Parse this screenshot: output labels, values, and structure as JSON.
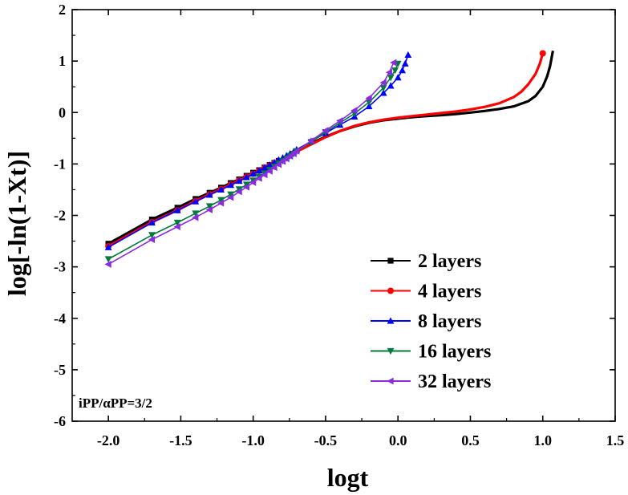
{
  "chart_data": {
    "type": "line",
    "title": "",
    "xlabel": "logt",
    "ylabel": "log[-ln(1-Xt)]",
    "xlim": [
      -2.25,
      1.5
    ],
    "ylim": [
      -6,
      2
    ],
    "xticks": [
      -2.0,
      -1.5,
      -1.0,
      -0.5,
      0.0,
      0.5,
      1.0,
      1.5
    ],
    "xtick_labels": [
      "-2.0",
      "-1.5",
      "-1.0",
      "-0.5",
      "0.0",
      "0.5",
      "1.0",
      "1.5"
    ],
    "yticks": [
      -6,
      -5,
      -4,
      -3,
      -2,
      -1,
      0,
      1,
      2
    ],
    "ytick_labels": [
      "-6",
      "-5",
      "-4",
      "-3",
      "-2",
      "-1",
      "0",
      "1",
      "2"
    ],
    "legend_position": "lower-right",
    "annotation": "iPP/αPP=3/2",
    "series": [
      {
        "name": "2 layers",
        "color": "#000000",
        "marker": "square",
        "x": [
          -2.0,
          -1.699,
          -1.523,
          -1.398,
          -1.301,
          -1.222,
          -1.155,
          -1.097,
          -1.046,
          -1.0,
          -0.959,
          -0.921,
          -0.886,
          -0.854,
          -0.824,
          -0.8,
          -0.7,
          -0.6,
          -0.5,
          -0.4,
          -0.3,
          -0.2,
          -0.1,
          0.0,
          0.1,
          0.2,
          0.3,
          0.4,
          0.5,
          0.6,
          0.7,
          0.8,
          0.9,
          0.95,
          1.0,
          1.03,
          1.05,
          1.07
        ],
        "y": [
          -2.55,
          -2.08,
          -1.85,
          -1.68,
          -1.56,
          -1.46,
          -1.37,
          -1.3,
          -1.23,
          -1.17,
          -1.12,
          -1.07,
          -1.02,
          -0.98,
          -0.94,
          -0.9,
          -0.75,
          -0.6,
          -0.47,
          -0.36,
          -0.27,
          -0.2,
          -0.15,
          -0.12,
          -0.09,
          -0.07,
          -0.05,
          -0.03,
          0.0,
          0.03,
          0.07,
          0.12,
          0.22,
          0.32,
          0.5,
          0.7,
          0.9,
          1.2
        ],
        "marker_every": [
          0,
          1,
          2,
          3,
          4,
          5,
          6,
          7,
          8,
          9,
          10,
          11,
          12,
          13,
          14
        ]
      },
      {
        "name": "4 layers",
        "color": "#ff0000",
        "marker": "circle",
        "x": [
          -2.0,
          -1.699,
          -1.523,
          -1.398,
          -1.301,
          -1.222,
          -1.155,
          -1.097,
          -1.046,
          -1.0,
          -0.959,
          -0.921,
          -0.886,
          -0.854,
          -0.824,
          -0.8,
          -0.7,
          -0.6,
          -0.5,
          -0.4,
          -0.3,
          -0.2,
          -0.1,
          0.0,
          0.1,
          0.2,
          0.3,
          0.4,
          0.5,
          0.6,
          0.7,
          0.8,
          0.85,
          0.9,
          0.95,
          0.98,
          1.0
        ],
        "y": [
          -2.6,
          -2.13,
          -1.9,
          -1.72,
          -1.59,
          -1.49,
          -1.4,
          -1.32,
          -1.25,
          -1.19,
          -1.13,
          -1.08,
          -1.03,
          -0.99,
          -0.95,
          -0.91,
          -0.76,
          -0.62,
          -0.48,
          -0.36,
          -0.26,
          -0.19,
          -0.14,
          -0.1,
          -0.07,
          -0.04,
          -0.01,
          0.02,
          0.06,
          0.11,
          0.18,
          0.3,
          0.4,
          0.55,
          0.75,
          0.95,
          1.15
        ],
        "marker_every": [
          0,
          1,
          2,
          3,
          4,
          5,
          6,
          7,
          8,
          9,
          10,
          11,
          12,
          13,
          14,
          36
        ]
      },
      {
        "name": "8 layers",
        "color": "#0000ff",
        "marker": "triangle-up",
        "x": [
          -2.0,
          -1.699,
          -1.523,
          -1.398,
          -1.301,
          -1.222,
          -1.155,
          -1.097,
          -1.046,
          -1.0,
          -0.959,
          -0.921,
          -0.886,
          -0.854,
          -0.824,
          -0.796,
          -0.77,
          -0.745,
          -0.72,
          -0.7,
          -0.6,
          -0.5,
          -0.4,
          -0.3,
          -0.2,
          -0.1,
          -0.05,
          0.0,
          0.03,
          0.05,
          0.07
        ],
        "y": [
          -2.62,
          -2.14,
          -1.9,
          -1.73,
          -1.6,
          -1.5,
          -1.41,
          -1.33,
          -1.26,
          -1.19,
          -1.13,
          -1.07,
          -1.02,
          -0.97,
          -0.92,
          -0.88,
          -0.84,
          -0.8,
          -0.76,
          -0.72,
          -0.56,
          -0.4,
          -0.24,
          -0.08,
          0.12,
          0.38,
          0.52,
          0.68,
          0.82,
          0.95,
          1.12
        ],
        "marker_every": [
          0,
          1,
          2,
          3,
          4,
          5,
          6,
          7,
          8,
          9,
          10,
          11,
          12,
          13,
          14,
          15,
          16,
          17,
          18,
          19,
          20,
          21,
          22,
          23,
          24,
          25,
          26,
          27,
          28,
          29,
          30
        ]
      },
      {
        "name": "16 layers",
        "color": "#007a3d",
        "marker": "triangle-down",
        "x": [
          -2.0,
          -1.699,
          -1.523,
          -1.398,
          -1.301,
          -1.222,
          -1.155,
          -1.097,
          -1.046,
          -1.0,
          -0.959,
          -0.921,
          -0.886,
          -0.854,
          -0.824,
          -0.796,
          -0.77,
          -0.745,
          -0.72,
          -0.7,
          -0.6,
          -0.5,
          -0.4,
          -0.3,
          -0.2,
          -0.1,
          -0.05,
          -0.02,
          0.0
        ],
        "y": [
          -2.85,
          -2.38,
          -2.14,
          -1.96,
          -1.82,
          -1.7,
          -1.59,
          -1.49,
          -1.4,
          -1.32,
          -1.25,
          -1.18,
          -1.11,
          -1.05,
          -0.99,
          -0.94,
          -0.89,
          -0.84,
          -0.8,
          -0.75,
          -0.57,
          -0.38,
          -0.2,
          -0.02,
          0.2,
          0.48,
          0.68,
          0.82,
          0.95
        ],
        "marker_every": [
          0,
          1,
          2,
          3,
          4,
          5,
          6,
          7,
          8,
          9,
          10,
          11,
          12,
          13,
          14,
          15,
          16,
          17,
          18,
          19,
          20,
          21,
          22,
          23,
          24,
          25,
          26,
          27,
          28
        ]
      },
      {
        "name": "32 layers",
        "color": "#8a2be2",
        "marker": "triangle-left",
        "x": [
          -2.0,
          -1.699,
          -1.523,
          -1.398,
          -1.301,
          -1.222,
          -1.155,
          -1.097,
          -1.046,
          -1.0,
          -0.959,
          -0.921,
          -0.886,
          -0.854,
          -0.824,
          -0.796,
          -0.77,
          -0.745,
          -0.72,
          -0.7,
          -0.6,
          -0.5,
          -0.4,
          -0.3,
          -0.2,
          -0.1,
          -0.06,
          -0.03
        ],
        "y": [
          -2.95,
          -2.47,
          -2.22,
          -2.04,
          -1.89,
          -1.76,
          -1.65,
          -1.54,
          -1.45,
          -1.36,
          -1.28,
          -1.21,
          -1.14,
          -1.07,
          -1.01,
          -0.95,
          -0.9,
          -0.85,
          -0.8,
          -0.75,
          -0.55,
          -0.35,
          -0.16,
          0.04,
          0.28,
          0.58,
          0.78,
          0.97
        ],
        "marker_every": [
          0,
          1,
          2,
          3,
          4,
          5,
          6,
          7,
          8,
          9,
          10,
          11,
          12,
          13,
          14,
          15,
          16,
          17,
          18,
          19,
          20,
          21,
          22,
          23,
          24,
          25,
          26,
          27
        ]
      }
    ]
  }
}
